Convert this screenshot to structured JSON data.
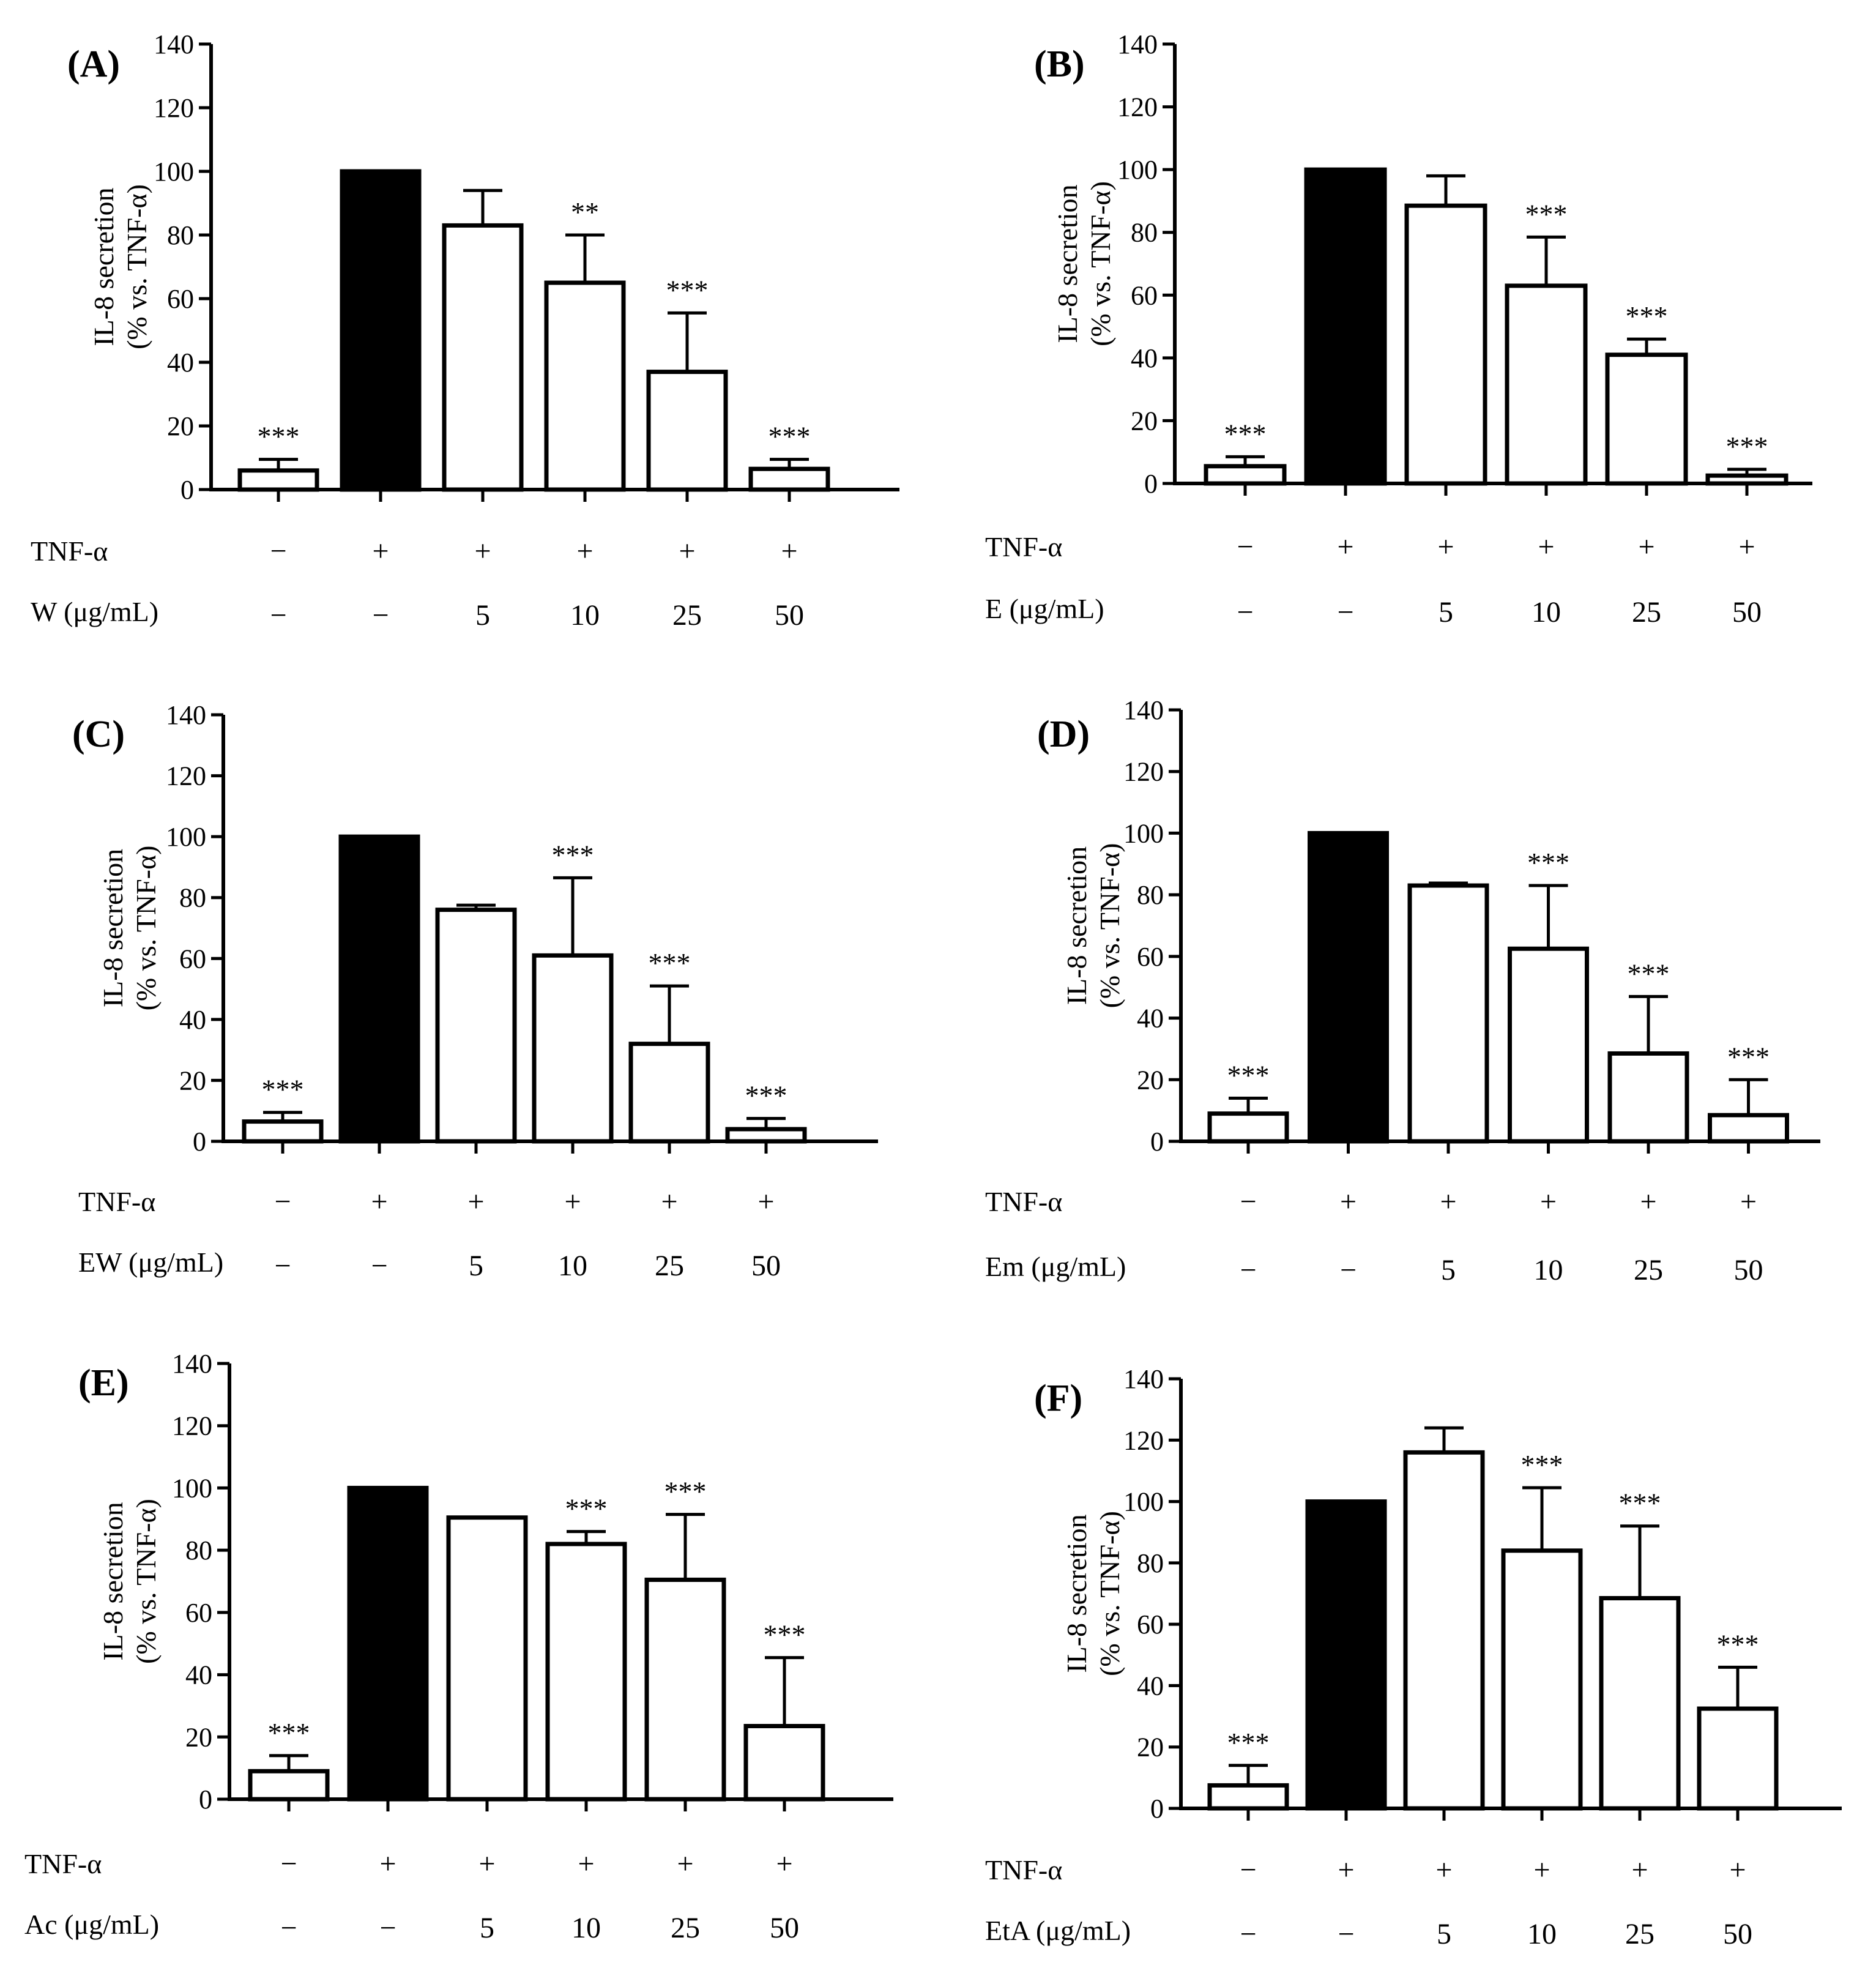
{
  "figure": {
    "ylabel_line1": "IL-8 secretion",
    "ylabel_line2": "(% vs. TNF-α)",
    "tnf_row_label": "TNF-α",
    "tnf_row": [
      "−",
      "+",
      "+",
      "+",
      "+",
      "+"
    ],
    "colors": {
      "control_fill": "#000000",
      "treated_fill": "#ffffff",
      "stroke": "#000000"
    }
  },
  "chart_data": [
    {
      "panel": "(A)",
      "type": "bar",
      "ylim": [
        0,
        140
      ],
      "yticks": [
        0,
        20,
        40,
        60,
        80,
        100,
        120,
        140
      ],
      "dose_label": "W (μg/mL)",
      "doses": [
        "−",
        "−",
        "5",
        "10",
        "25",
        "50"
      ],
      "values": [
        6,
        100,
        83,
        65,
        37,
        6.5
      ],
      "errors": [
        3.5,
        0,
        11,
        15,
        18.5,
        3
      ],
      "significance": [
        "***",
        "",
        "",
        "**",
        "***",
        "***"
      ]
    },
    {
      "panel": "(B)",
      "type": "bar",
      "ylim": [
        0,
        140
      ],
      "yticks": [
        0,
        20,
        40,
        60,
        80,
        100,
        120,
        140
      ],
      "dose_label": "E (μg/mL)",
      "doses": [
        "−",
        "−",
        "5",
        "10",
        "25",
        "50"
      ],
      "values": [
        5.5,
        100,
        88.5,
        63,
        41,
        2.5
      ],
      "errors": [
        3,
        0,
        9.5,
        15.5,
        5,
        2
      ],
      "significance": [
        "***",
        "",
        "",
        "***",
        "***",
        "***"
      ]
    },
    {
      "panel": "(C)",
      "type": "bar",
      "ylim": [
        0,
        140
      ],
      "yticks": [
        0,
        20,
        40,
        60,
        80,
        100,
        120,
        140
      ],
      "dose_label": "EW (μg/mL)",
      "doses": [
        "−",
        "−",
        "5",
        "10",
        "25",
        "50"
      ],
      "values": [
        6.5,
        100,
        76,
        61,
        32,
        4
      ],
      "errors": [
        3,
        0,
        1.5,
        25.5,
        19,
        3.5
      ],
      "significance": [
        "***",
        "",
        "",
        "***",
        "***",
        "***"
      ]
    },
    {
      "panel": "(D)",
      "type": "bar",
      "ylim": [
        0,
        140
      ],
      "yticks": [
        0,
        20,
        40,
        60,
        80,
        100,
        120,
        140
      ],
      "dose_label": "Em (μg/mL)",
      "doses": [
        "−",
        "−",
        "5",
        "10",
        "25",
        "50"
      ],
      "values": [
        9,
        100,
        83,
        62.5,
        28.5,
        8.5
      ],
      "errors": [
        5,
        0,
        0.8,
        20.5,
        18.5,
        11.5
      ],
      "significance": [
        "***",
        "",
        "",
        "***",
        "***",
        "***"
      ]
    },
    {
      "panel": "(E)",
      "type": "bar",
      "ylim": [
        0,
        140
      ],
      "yticks": [
        0,
        20,
        40,
        60,
        80,
        100,
        120,
        140
      ],
      "dose_label": "Ac (μg/mL)",
      "doses": [
        "−",
        "−",
        "5",
        "10",
        "25",
        "50"
      ],
      "values": [
        9,
        100,
        90.5,
        82,
        70.5,
        23.5
      ],
      "errors": [
        5,
        0,
        0,
        4,
        21,
        22
      ],
      "significance": [
        "***",
        "",
        "",
        "***",
        "***",
        "***"
      ]
    },
    {
      "panel": "(F)",
      "type": "bar",
      "ylim": [
        0,
        140
      ],
      "yticks": [
        0,
        20,
        40,
        60,
        80,
        100,
        120,
        140
      ],
      "dose_label": "EtA (μg/mL)",
      "doses": [
        "−",
        "−",
        "5",
        "10",
        "25",
        "50"
      ],
      "values": [
        7.5,
        100,
        116,
        84,
        68.5,
        32.5
      ],
      "errors": [
        6.5,
        0,
        8,
        20.5,
        23.5,
        13.5
      ],
      "significance": [
        "***",
        "",
        "",
        "***",
        "***",
        "***"
      ]
    }
  ]
}
